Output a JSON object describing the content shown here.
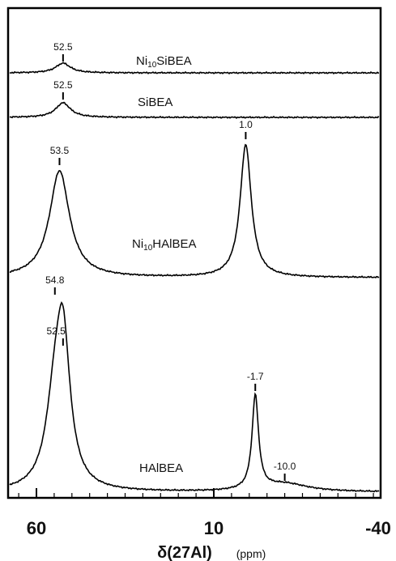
{
  "chart_data": {
    "type": "line",
    "x_axis": {
      "range": [
        70,
        -40
      ],
      "reversed": true,
      "major_ticks": [
        60,
        10,
        -40
      ],
      "tick_labels": [
        "60",
        "10",
        "-40"
      ],
      "minor_tick_step": 5,
      "label": "δ(27Al)",
      "unit": "(ppm)"
    },
    "y_axis": {
      "visible": false
    },
    "grid": false,
    "series": [
      {
        "name": "Ni10SiBEA",
        "name_main": "Ni",
        "name_sub": "10",
        "name_rest": "SiBEA",
        "peaks": [
          {
            "ppm": 52.5,
            "label": "52.5"
          }
        ]
      },
      {
        "name": "SiBEA",
        "peaks": [
          {
            "ppm": 52.5,
            "label": "52.5"
          }
        ]
      },
      {
        "name": "Ni10HAlBEA",
        "name_main": "Ni",
        "name_sub": "10",
        "name_rest": "HAlBEA",
        "peaks": [
          {
            "ppm": 53.5,
            "label": "53.5"
          },
          {
            "ppm": 1.0,
            "label": "1.0"
          }
        ]
      },
      {
        "name": "HAlBEA",
        "peaks": [
          {
            "ppm": 54.8,
            "label": "54.8",
            "shoulder": true
          },
          {
            "ppm": 52.5,
            "label": "52.5"
          },
          {
            "ppm": -1.7,
            "label": "-1.7"
          },
          {
            "ppm": -10.0,
            "label": "-10.0"
          }
        ]
      }
    ]
  }
}
